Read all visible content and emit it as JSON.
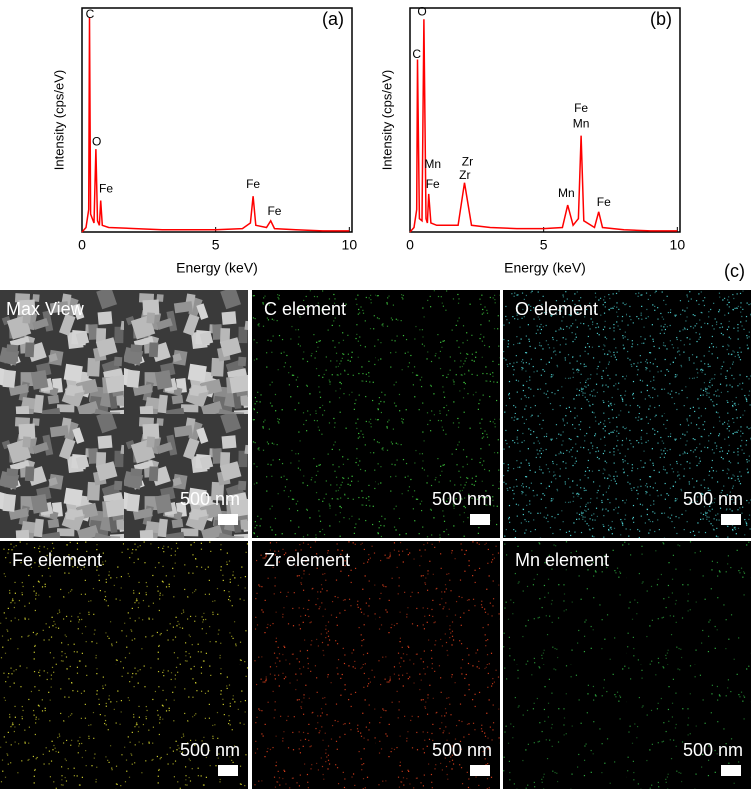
{
  "chart_data": [
    {
      "type": "line",
      "panel_label": "(a)",
      "x_label": "Energy (keV)",
      "y_label": "Intensity (cps/eV)",
      "xlim": [
        0,
        10.1
      ],
      "xticks": [
        0,
        5,
        10
      ],
      "ylim": [
        0,
        100
      ],
      "series": [
        {
          "color": "#ff0000",
          "x": [
            0,
            0.15,
            0.25,
            0.28,
            0.32,
            0.45,
            0.52,
            0.58,
            0.65,
            0.7,
            0.76,
            1.0,
            2.0,
            3.0,
            4.0,
            5.0,
            6.0,
            6.3,
            6.4,
            6.5,
            6.9,
            7.06,
            7.2,
            8.0,
            9.0,
            10.0
          ],
          "values": [
            0,
            2,
            10,
            96,
            8,
            4,
            37,
            5,
            3,
            14,
            3,
            2,
            1.5,
            1,
            1,
            1,
            1.5,
            4,
            16,
            3,
            2,
            5,
            1.5,
            1,
            0.5,
            0.5
          ]
        }
      ],
      "annotations": [
        {
          "text": "C",
          "x": 0.3,
          "y": 97
        },
        {
          "text": "O",
          "x": 0.55,
          "y": 40
        },
        {
          "text": "Fe",
          "x": 0.9,
          "y": 19
        },
        {
          "text": "Fe",
          "x": 6.4,
          "y": 21
        },
        {
          "text": "Fe",
          "x": 7.2,
          "y": 9
        }
      ]
    },
    {
      "type": "line",
      "panel_label": "(b)",
      "x_label": "Energy (keV)",
      "y_label": "Intensity (cps/eV)",
      "xlim": [
        0,
        10.1
      ],
      "xticks": [
        0,
        5,
        10
      ],
      "ylim": [
        0,
        100
      ],
      "series": [
        {
          "color": "#ff0000",
          "x": [
            0,
            0.15,
            0.25,
            0.28,
            0.35,
            0.45,
            0.52,
            0.6,
            0.65,
            0.7,
            0.78,
            1.0,
            1.8,
            2.04,
            2.3,
            3.0,
            4.0,
            5.0,
            5.7,
            5.9,
            6.1,
            6.3,
            6.4,
            6.5,
            6.9,
            7.06,
            7.2,
            8.0,
            9.0,
            10.0
          ],
          "values": [
            0,
            2,
            10,
            77,
            6,
            5,
            95,
            6,
            4,
            17,
            4,
            3,
            3,
            22,
            3,
            2,
            1.5,
            1.5,
            2,
            12,
            3,
            6,
            43,
            5,
            2,
            9,
            2,
            1,
            0.5,
            0.5
          ]
        }
      ],
      "annotations": [
        {
          "text": "O",
          "x": 0.45,
          "y": 98
        },
        {
          "text": "C",
          "x": 0.25,
          "y": 79
        },
        {
          "text": "Mn",
          "x": 0.85,
          "y": 30
        },
        {
          "text": "Fe",
          "x": 0.85,
          "y": 21
        },
        {
          "text": "Zr",
          "x": 2.15,
          "y": 31
        },
        {
          "text": "Zr",
          "x": 2.05,
          "y": 25
        },
        {
          "text": "Mn",
          "x": 5.85,
          "y": 17
        },
        {
          "text": "Fe",
          "x": 6.4,
          "y": 55
        },
        {
          "text": "Mn",
          "x": 6.4,
          "y": 48
        },
        {
          "text": "Fe",
          "x": 7.25,
          "y": 13
        }
      ]
    }
  ],
  "figure_label": "(c)",
  "panels": [
    {
      "label": "Max View",
      "scale": "500 nm",
      "color": "#9a9a9a"
    },
    {
      "label": "C element",
      "scale": "500 nm",
      "color": "#3fcf3f"
    },
    {
      "label": "O element",
      "scale": "500 nm",
      "color": "#4fd8d8"
    },
    {
      "label": "Fe element",
      "scale": "500 nm",
      "color": "#d8d830"
    },
    {
      "label": "Zr element",
      "scale": "500 nm",
      "color": "#e0401c"
    },
    {
      "label": "Mn element",
      "scale": "500 nm",
      "color": "#2fb040"
    }
  ]
}
